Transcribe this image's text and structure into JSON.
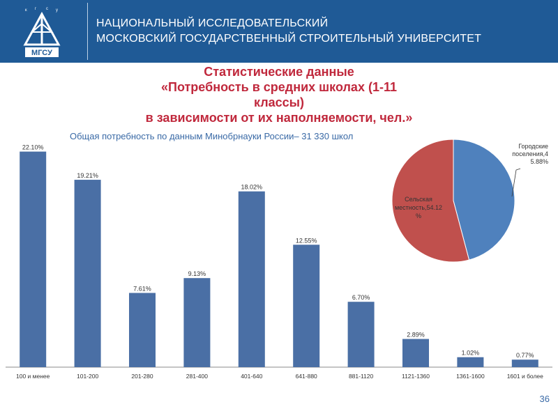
{
  "header": {
    "logo_text": "МГСУ",
    "line1": "НАЦИОНАЛЬНЫЙ ИССЛЕДОВАТЕЛЬСКИЙ",
    "line2": "МОСКОВСКИЙ  ГОСУДАРСТВЕННЫЙ СТРОИТЕЛЬНЫЙ УНИВЕРСИТЕТ"
  },
  "title": {
    "line1": "Статистические данные",
    "line2": "«Потребность в средних школах (1-11",
    "line3": "классы)",
    "line4": "в зависимости от их наполняемости, чел.»"
  },
  "subtitle": "Общая потребность по данным Минобрнауки России– 31 330 школ",
  "page_number": "36",
  "colors": {
    "header_bg": "#1f5a96",
    "bar": "#4a6fa5",
    "pie_urban": "#4f81bd",
    "pie_rural": "#c0504d",
    "title": "#c0283c"
  },
  "chart_data": [
    {
      "type": "bar",
      "categories": [
        "100 и менее",
        "101-200",
        "201-280",
        "281-400",
        "401-640",
        "641-880",
        "881-1120",
        "1121-1360",
        "1361-1600",
        "1601 и более"
      ],
      "values": [
        22.1,
        19.21,
        7.61,
        9.13,
        18.02,
        12.55,
        6.7,
        2.89,
        1.02,
        0.77
      ],
      "labels": [
        "22.10%",
        "19.21%",
        "7.61%",
        "9.13%",
        "18.02%",
        "12.55%",
        "6.70%",
        "2.89%",
        "1.02%",
        "0.77%"
      ],
      "ylim": [
        0,
        23
      ],
      "grid": false
    },
    {
      "type": "pie",
      "labels": [
        "Городские поселения,45.88%",
        "Сельская местность,54.12 %"
      ],
      "values": [
        45.88,
        54.12
      ]
    }
  ]
}
